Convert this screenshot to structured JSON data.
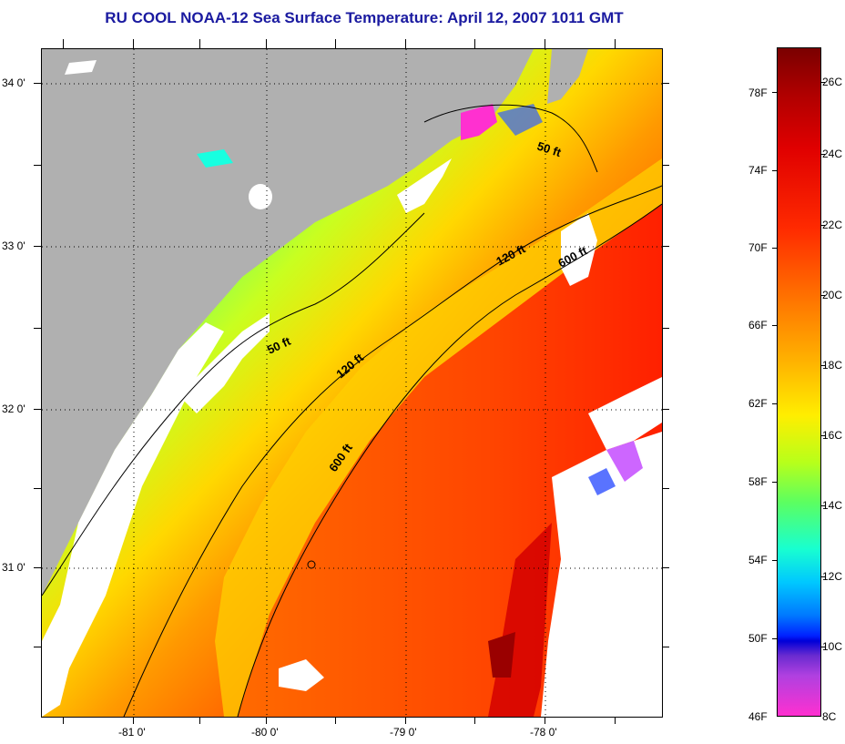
{
  "title": "RU COOL  NOAA-12  Sea Surface Temperature:  April 12, 2007 1011 GMT",
  "latitude_labels": [
    "34 0'",
    "33 0'",
    "32 0'",
    "31 0'"
  ],
  "longitude_labels": [
    "-81 0'",
    "-80 0'",
    "-79 0'",
    "-78 0'"
  ],
  "isobath_labels": [
    "50 ft",
    "50 ft",
    "120 ft",
    "120 ft",
    "600 ft",
    "600 ft"
  ],
  "colorbar": {
    "fahrenheit_labels": [
      "78F",
      "74F",
      "70F",
      "66F",
      "62F",
      "58F",
      "54F",
      "50F",
      "46F"
    ],
    "celsius_labels": [
      "26C",
      "24C",
      "22C",
      "20C",
      "18C",
      "16C",
      "14C",
      "12C",
      "10C",
      "8C"
    ]
  },
  "colors": {
    "land": "#b0b0b0",
    "cloud": "#ffffff",
    "title": "#1a1aa0"
  }
}
